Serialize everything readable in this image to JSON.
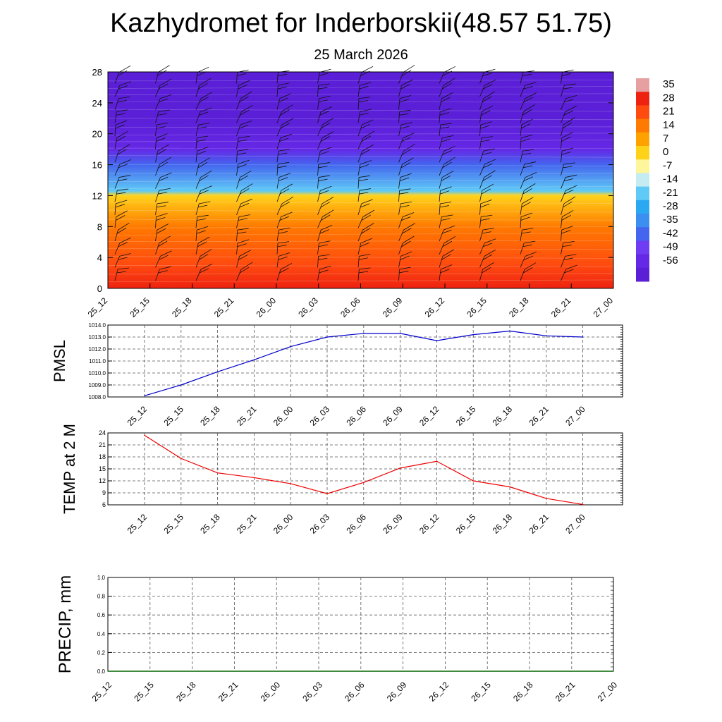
{
  "title": "Kazhydromet for Inderborskii(48.57 51.75)",
  "subtitle": "25 March 2026",
  "chart_data": [
    {
      "type": "heatmap",
      "name": "temperature-cross-section",
      "x_labels": [
        "25_12",
        "25_15",
        "25_18",
        "25_21",
        "26_00",
        "26_03",
        "26_06",
        "26_09",
        "26_12",
        "26_15",
        "26_18",
        "26_21",
        "27_00"
      ],
      "y_ticks": [
        0,
        4,
        8,
        12,
        16,
        20,
        24,
        28
      ],
      "ylim": [
        0,
        28
      ],
      "colorbar_labels": [
        "35",
        "28",
        "21",
        "14",
        "7",
        "0",
        "-7",
        "-14",
        "-21",
        "-28",
        "-35",
        "-42",
        "-49",
        "-56"
      ],
      "colorbar_range": [
        -63,
        42
      ],
      "temperature_by_level": [
        {
          "level": 0,
          "value": 30
        },
        {
          "level": 3,
          "value": 28
        },
        {
          "level": 8,
          "value": 20
        },
        {
          "level": 12,
          "value": 4
        },
        {
          "level": 12.6,
          "value": -14
        },
        {
          "level": 16,
          "value": -40
        },
        {
          "level": 18,
          "value": -55
        },
        {
          "level": 22,
          "value": -63
        },
        {
          "level": 28,
          "value": -62
        }
      ],
      "wind_barbs": "plotted at each 3-hour step from 25_12 to 26_21"
    },
    {
      "type": "line",
      "name": "pmsl",
      "ylabel": "PMSL",
      "x_labels": [
        "25_12",
        "25_15",
        "25_18",
        "25_21",
        "26_00",
        "26_03",
        "26_06",
        "26_09",
        "26_12",
        "26_15",
        "26_18",
        "26_21",
        "27_00"
      ],
      "y_ticks": [
        "1008.0",
        "1009.0",
        "1010.0",
        "1011.0",
        "1012.0",
        "1013.0",
        "1014.0"
      ],
      "ylim": [
        1008,
        1014
      ],
      "values": [
        1008.1,
        1009.0,
        1010.1,
        1011.1,
        1012.2,
        1013.0,
        1013.3,
        1013.3,
        1012.7,
        1013.2,
        1013.5,
        1013.1,
        1013.0
      ],
      "color": "#0000cc"
    },
    {
      "type": "line",
      "name": "temp-2m",
      "ylabel": "TEMP at 2 M",
      "x_labels": [
        "25_12",
        "25_15",
        "25_18",
        "25_21",
        "26_00",
        "26_03",
        "26_06",
        "26_09",
        "26_12",
        "26_15",
        "26_18",
        "26_21",
        "27_00"
      ],
      "y_ticks": [
        "6",
        "9",
        "12",
        "15",
        "18",
        "21",
        "24"
      ],
      "ylim": [
        6,
        24
      ],
      "values": [
        23.4,
        17.6,
        14.0,
        12.8,
        11.3,
        8.8,
        11.6,
        15.2,
        16.9,
        12.0,
        10.5,
        7.6,
        6.1
      ],
      "color": "#ee0000"
    },
    {
      "type": "line",
      "name": "precip",
      "ylabel": "PRECIP, mm",
      "x_labels": [
        "25_12",
        "25_15",
        "25_18",
        "25_21",
        "26_00",
        "26_03",
        "26_06",
        "26_09",
        "26_12",
        "26_15",
        "26_18",
        "26_21",
        "27_00"
      ],
      "y_ticks": [
        "0.0",
        "0.2",
        "0.4",
        "0.6",
        "0.8",
        "1.0"
      ],
      "ylim": [
        0,
        1
      ],
      "values": [
        0,
        0,
        0,
        0,
        0,
        0,
        0,
        0,
        0,
        0,
        0,
        0,
        0
      ],
      "color": "#006400"
    }
  ]
}
